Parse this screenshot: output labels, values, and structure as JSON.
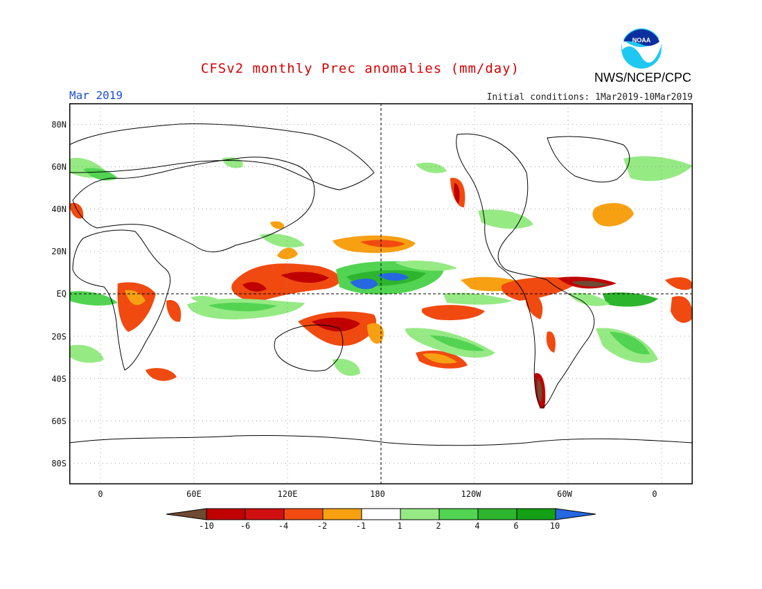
{
  "title": "CFSv2 monthly Prec anomalies (mm/day)",
  "month_label": "Mar 2019",
  "initial_conditions": "Initial conditions: 1Mar2019-10Mar2019",
  "agency": "NWS/NCEP/CPC",
  "logo_text": "NOAA",
  "axes": {
    "lat_ticks": [
      "80N",
      "60N",
      "40N",
      "20N",
      "EQ",
      "20S",
      "40S",
      "60S",
      "80S"
    ],
    "lon_ticks": [
      "0",
      "60E",
      "120E",
      "180",
      "120W",
      "60W",
      "0"
    ],
    "lon_range_deg_east": [
      -20,
      380
    ],
    "lat_range": [
      -90,
      90
    ],
    "grid": "dotted",
    "reference_lines": [
      "equator dashed",
      "dateline dashed"
    ]
  },
  "colorbar": {
    "labels": [
      "-10",
      "-6",
      "-4",
      "-2",
      "-1",
      "1",
      "2",
      "4",
      "6",
      "10"
    ],
    "colors": [
      "#6e4a32",
      "#c00000",
      "#d01010",
      "#f04a10",
      "#f7a012",
      "#ffffff",
      "#96ea84",
      "#52d452",
      "#2eb52e",
      "#14a014",
      "#2668e0"
    ]
  }
}
